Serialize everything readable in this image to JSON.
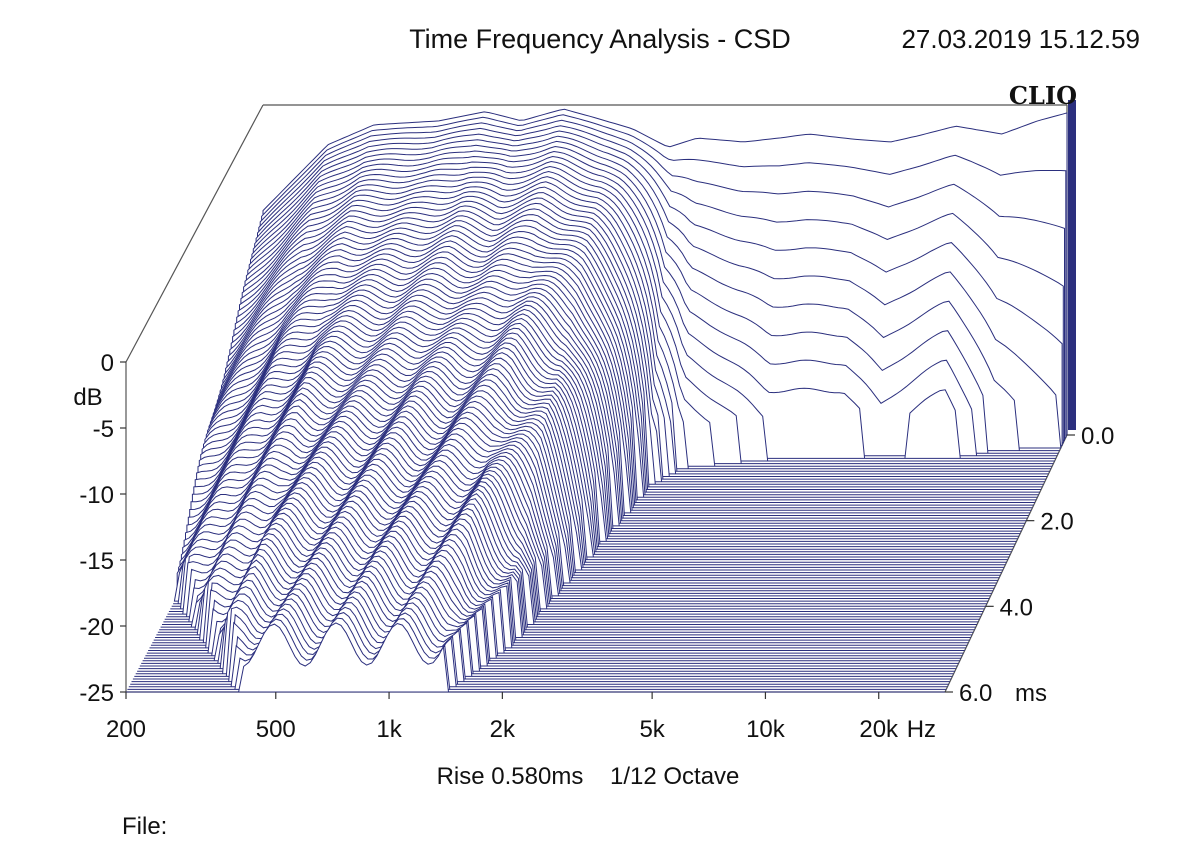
{
  "header": {
    "title": "Time Frequency Analysis - CSD",
    "timestamp": "27.03.2019 15.12.59",
    "brand": "CLIO"
  },
  "footer": {
    "settings": "Rise 0.580ms    1/12 Octave",
    "file_label": "File:"
  },
  "colors": {
    "trace": "#2b2f7e",
    "accent": "#2b2f7e",
    "background": "#ffffff"
  },
  "chart_data": {
    "type": "waterfall",
    "x_scale": "log",
    "xlim": [
      200,
      30000
    ],
    "ylim": [
      -25,
      0
    ],
    "zlim": [
      0,
      6
    ],
    "y_unit_label": "dB",
    "x_unit_label": "Hz",
    "z_unit_label": "ms",
    "x_ticks": [
      {
        "value": 200,
        "label": "200"
      },
      {
        "value": 500,
        "label": "500"
      },
      {
        "value": 1000,
        "label": "1k"
      },
      {
        "value": 2000,
        "label": "2k"
      },
      {
        "value": 5000,
        "label": "5k"
      },
      {
        "value": 10000,
        "label": "10k"
      },
      {
        "value": 20000,
        "label": "20k"
      }
    ],
    "y_ticks": [
      {
        "value": 0,
        "label": "0"
      },
      {
        "value": -5,
        "label": "-5"
      },
      {
        "value": -10,
        "label": "-10"
      },
      {
        "value": -15,
        "label": "-15"
      },
      {
        "value": -20,
        "label": "-20"
      },
      {
        "value": -25,
        "label": "-25"
      }
    ],
    "z_ticks": [
      {
        "value": 0,
        "label": "0.0"
      },
      {
        "value": 2,
        "label": "2.0"
      },
      {
        "value": 4,
        "label": "4.0"
      },
      {
        "value": 6,
        "label": "6.0"
      }
    ],
    "slices": 100,
    "baseline_response": [
      {
        "f": 200,
        "db": -8
      },
      {
        "f": 300,
        "db": -3
      },
      {
        "f": 400,
        "db": -1.5
      },
      {
        "f": 600,
        "db": -1.2
      },
      {
        "f": 800,
        "db": -0.5
      },
      {
        "f": 1000,
        "db": -1.2
      },
      {
        "f": 1300,
        "db": -0.3
      },
      {
        "f": 1600,
        "db": -1.0
      },
      {
        "f": 2000,
        "db": -1.8
      },
      {
        "f": 2500,
        "db": -3.2
      },
      {
        "f": 3000,
        "db": -2.5
      },
      {
        "f": 4000,
        "db": -2.8
      },
      {
        "f": 5000,
        "db": -2.5
      },
      {
        "f": 6000,
        "db": -2.2
      },
      {
        "f": 8000,
        "db": -2.6
      },
      {
        "f": 10000,
        "db": -2.8
      },
      {
        "f": 12000,
        "db": -2.3
      },
      {
        "f": 15000,
        "db": -1.6
      },
      {
        "f": 20000,
        "db": -2.2
      },
      {
        "f": 25000,
        "db": -1.2
      },
      {
        "f": 30000,
        "db": -0.6
      }
    ],
    "decay_ms": [
      {
        "f": 200,
        "ms": 3.8
      },
      {
        "f": 400,
        "ms": 6.0
      },
      {
        "f": 700,
        "ms": 6.0
      },
      {
        "f": 1000,
        "ms": 6.0
      },
      {
        "f": 1400,
        "ms": 6.0
      },
      {
        "f": 1800,
        "ms": 5.0
      },
      {
        "f": 2200,
        "ms": 3.0
      },
      {
        "f": 2600,
        "ms": 1.2
      },
      {
        "f": 3000,
        "ms": 0.8
      },
      {
        "f": 5000,
        "ms": 0.6
      },
      {
        "f": 8000,
        "ms": 0.6
      },
      {
        "f": 10000,
        "ms": 0.5
      },
      {
        "f": 15000,
        "ms": 0.6
      },
      {
        "f": 20000,
        "ms": 0.4
      },
      {
        "f": 30000,
        "ms": 0.3
      }
    ]
  }
}
